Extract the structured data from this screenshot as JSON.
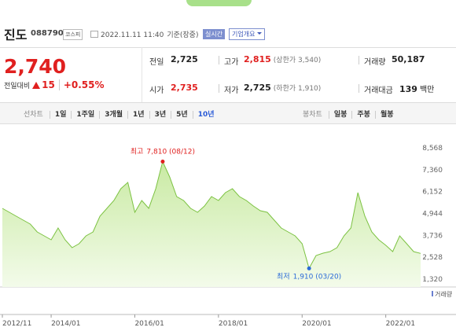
{
  "header": {
    "name": "진도",
    "code": "088790",
    "market": "코스피",
    "datetime": "2022.11.11 11:40",
    "basis": "기준(장중)",
    "realtime": "실시간",
    "company_info": "기업개요"
  },
  "price": {
    "current": "2,740",
    "change_label": "전일대비",
    "change": "15",
    "change_pct": "+0.55%"
  },
  "summary": [
    [
      {
        "label": "전일",
        "value": "2,725"
      },
      {
        "label": "고가",
        "value": "2,815",
        "note": "(상한가 3,540)",
        "color": "#e0201f"
      },
      {
        "label": "거래량",
        "value": "50,187"
      }
    ],
    [
      {
        "label": "시가",
        "value": "2,735",
        "color": "#e0201f"
      },
      {
        "label": "저가",
        "value": "2,725",
        "note": "(하한가 1,910)"
      },
      {
        "label": "거래대금",
        "value": "139",
        "unit": "백만"
      }
    ]
  ],
  "tabs": {
    "line_label": "선차트",
    "line_periods": [
      "1일",
      "1주일",
      "3개월",
      "1년",
      "3년",
      "5년",
      "10년"
    ],
    "candle_label": "봉차트",
    "candle_periods": [
      "일봉",
      "주봉",
      "월봉"
    ]
  },
  "chart_data": {
    "type": "area",
    "color": "#7cc242",
    "x": [
      "2012/11",
      "2013/01",
      "2013/03",
      "2013/05",
      "2013/07",
      "2013/09",
      "2013/11",
      "2014/01",
      "2014/03",
      "2014/05",
      "2014/07",
      "2014/09",
      "2014/11",
      "2015/01",
      "2015/03",
      "2015/05",
      "2015/07",
      "2015/09",
      "2015/11",
      "2016/01",
      "2016/03",
      "2016/05",
      "2016/07",
      "2016/09",
      "2016/11",
      "2017/01",
      "2017/03",
      "2017/05",
      "2017/07",
      "2017/09",
      "2017/11",
      "2018/01",
      "2018/03",
      "2018/05",
      "2018/07",
      "2018/09",
      "2018/11",
      "2019/01",
      "2019/03",
      "2019/05",
      "2019/07",
      "2019/09",
      "2019/11",
      "2020/01",
      "2020/03",
      "2020/05",
      "2020/07",
      "2020/09",
      "2020/11",
      "2021/01",
      "2021/03",
      "2021/05",
      "2021/07",
      "2021/09",
      "2021/11",
      "2022/01",
      "2022/03",
      "2022/05",
      "2022/07",
      "2022/09",
      "2022/11"
    ],
    "values": [
      5226,
      5009,
      4792,
      4575,
      4358,
      3924,
      3707,
      3490,
      4141,
      3490,
      3056,
      3273,
      3707,
      3924,
      4792,
      5226,
      5661,
      6311,
      6658,
      5009,
      5661,
      5226,
      6311,
      7810,
      6962,
      5877,
      5661,
      5226,
      5009,
      5356,
      5877,
      5661,
      6094,
      6311,
      5877,
      5661,
      5356,
      5096,
      5009,
      4575,
      4141,
      3924,
      3707,
      3273,
      1910,
      2622,
      2752,
      2839,
      3056,
      3707,
      4141,
      6094,
      4792,
      3924,
      3490,
      3186,
      2839,
      3707,
      3273,
      2839,
      2740
    ],
    "ylim": [
      1320,
      8568
    ],
    "yticks": [
      {
        "value": 8568,
        "label": "8,568"
      },
      {
        "value": 7360,
        "label": "7,360"
      },
      {
        "value": 6152,
        "label": "6,152"
      },
      {
        "value": 4944,
        "label": "4,944"
      },
      {
        "value": 3736,
        "label": "3,736"
      },
      {
        "value": 2528,
        "label": "2,528"
      },
      {
        "value": 1320,
        "label": "1,320"
      }
    ],
    "xticks": [
      "2012/11",
      "2014/01",
      "2016/01",
      "2018/01",
      "2020/01",
      "2022/01"
    ],
    "annotations": [
      {
        "label": "최고",
        "text": "7,810 (08/12)",
        "color": "#e0201f"
      },
      {
        "label": "최저",
        "text": "1,910 (03/20)",
        "color": "#2a6ad7"
      }
    ],
    "volume_label": "거래량"
  }
}
